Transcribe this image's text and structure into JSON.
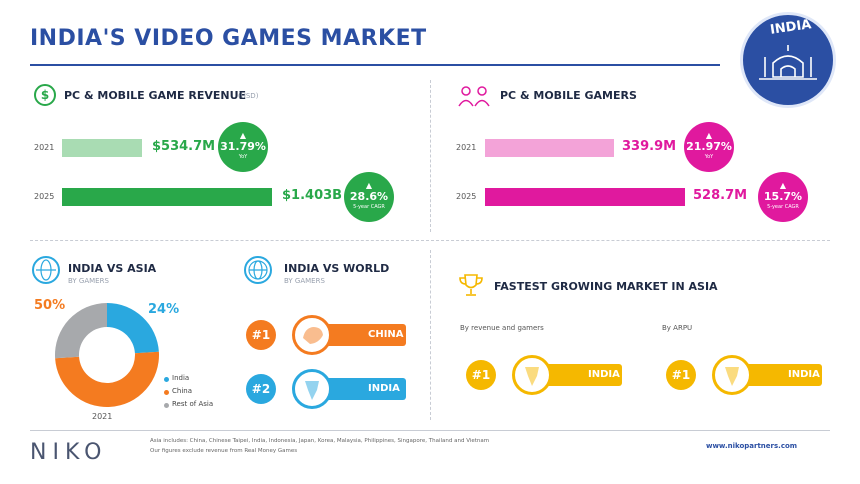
{
  "title": "INDIA'S VIDEO GAMES MARKET",
  "badge": "INDIA",
  "revenue": {
    "title": "PC & MOBILE GAME REVENUE",
    "unit": "(USD)",
    "icon": "dollar-icon",
    "color_light": "#a9dcb3",
    "color_dark": "#29a84a",
    "rows": [
      {
        "year": "2021",
        "value_label": "$534.7M",
        "pill_pct": "31.79%",
        "pill_caption": "YoY"
      },
      {
        "year": "2025",
        "value_label": "$1.403B",
        "pill_pct": "28.6%",
        "pill_caption": "5-year CAGR"
      }
    ]
  },
  "gamers": {
    "title": "PC & MOBILE GAMERS",
    "icon": "gamers-icon",
    "color_light": "#f3a3d8",
    "color_dark": "#e0199e",
    "rows": [
      {
        "year": "2021",
        "value_label": "339.9M",
        "pill_pct": "21.97%",
        "pill_caption": "YoY"
      },
      {
        "year": "2025",
        "value_label": "528.7M",
        "pill_pct": "15.7%",
        "pill_caption": "5-year CAGR"
      }
    ]
  },
  "india_vs_asia": {
    "title": "INDIA VS ASIA",
    "subtitle": "BY GAMERS",
    "icon": "globe-asia-icon",
    "year": "2021",
    "label_india": "24%",
    "label_china": "50%",
    "legend": [
      {
        "label": "India",
        "color": "#2aa8df"
      },
      {
        "label": "China",
        "color": "#f47b20"
      },
      {
        "label": "Rest of Asia",
        "color": "#a7a9ac"
      }
    ]
  },
  "india_vs_world": {
    "title": "INDIA VS WORLD",
    "subtitle": "BY GAMERS",
    "icon": "globe-world-icon",
    "ranks": [
      {
        "rank": "#1",
        "country": "CHINA",
        "color": "#f47b20",
        "icon": "china-map-icon"
      },
      {
        "rank": "#2",
        "country": "INDIA",
        "color": "#2aa8df",
        "icon": "india-map-icon"
      }
    ]
  },
  "fastest": {
    "title": "FASTEST GROWING MARKET IN ASIA",
    "icon": "trophy-icon",
    "color": "#f5b800",
    "items": [
      {
        "caption": "By revenue and gamers",
        "rank": "#1",
        "country": "INDIA"
      },
      {
        "caption": "By ARPU",
        "rank": "#1",
        "country": "INDIA"
      }
    ]
  },
  "footer": {
    "logo": "NIKO",
    "note1": "Asia includes: China, Chinese Taipei, India, Indonesia, Japan, Korea, Malaysia, Philippines, Singapore, Thailand and Vietnam",
    "note2": "Our figures exclude revenue from Real Money Games",
    "url": "www.nikopartners.com"
  },
  "chart_data": [
    {
      "type": "bar",
      "title": "PC & MOBILE GAME REVENUE",
      "categories": [
        "2021",
        "2025"
      ],
      "values": [
        534.7,
        1403
      ],
      "value_labels": [
        "$534.7M",
        "$1.403B"
      ]
    },
    {
      "type": "bar",
      "title": "PC & MOBILE GAMERS",
      "categories": [
        "2021",
        "2025"
      ],
      "values": [
        339.9,
        528.7
      ],
      "value_labels": [
        "339.9M",
        "528.7M"
      ]
    },
    {
      "type": "pie",
      "title": "INDIA VS ASIA",
      "categories": [
        "India",
        "China",
        "Rest of Asia"
      ],
      "values": [
        24,
        50,
        26
      ],
      "colors": [
        "#2aa8df",
        "#f47b20",
        "#a7a9ac"
      ]
    }
  ]
}
